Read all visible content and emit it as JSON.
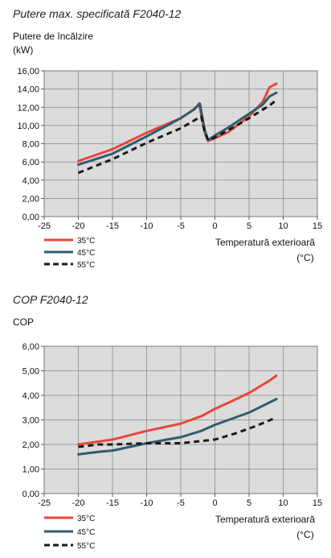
{
  "chart_data": [
    {
      "type": "line",
      "title": "Putere max. specificată F2040-12",
      "ylabel_line1": "Putere de încălzire",
      "ylabel_line2": "(kW)",
      "xlabel_line1": "Temperatură exterioară",
      "xlabel_line2": "(°C)",
      "xlim": [
        -25,
        15
      ],
      "ylim": [
        0,
        16
      ],
      "xticks": [
        "-25",
        "-20",
        "-15",
        "-10",
        "-5",
        "0",
        "5",
        "10",
        "15"
      ],
      "yticks": [
        "0,00",
        "2,00",
        "4,00",
        "6,00",
        "8,00",
        "10,00",
        "12,00",
        "14,00",
        "16,00"
      ],
      "grid": true,
      "legend_position": "bottom-left",
      "series": [
        {
          "name": "35°C",
          "color": "#e8473a",
          "style": "solid",
          "points": [
            [
              -20,
              6.1
            ],
            [
              -15,
              7.4
            ],
            [
              -10,
              9.2
            ],
            [
              -5,
              10.8
            ],
            [
              -3,
              11.8
            ],
            [
              -2.3,
              12.4
            ],
            [
              -1.5,
              9.2
            ],
            [
              -1,
              8.3
            ],
            [
              0,
              8.6
            ],
            [
              2,
              9.3
            ],
            [
              5,
              11.0
            ],
            [
              7,
              12.6
            ],
            [
              8,
              14.2
            ],
            [
              9,
              14.6
            ]
          ]
        },
        {
          "name": "45°C",
          "color": "#2f5d6e",
          "style": "solid",
          "points": [
            [
              -20,
              5.7
            ],
            [
              -15,
              6.9
            ],
            [
              -10,
              8.8
            ],
            [
              -5,
              10.8
            ],
            [
              -3,
              11.8
            ],
            [
              -2.2,
              12.4
            ],
            [
              -1.5,
              9.5
            ],
            [
              -1,
              8.4
            ],
            [
              0,
              8.9
            ],
            [
              2,
              9.8
            ],
            [
              5,
              11.3
            ],
            [
              7,
              12.3
            ],
            [
              8,
              13.2
            ],
            [
              9,
              13.6
            ]
          ]
        },
        {
          "name": "55°C",
          "color": "#1a1a1a",
          "style": "dashed",
          "points": [
            [
              -20,
              4.8
            ],
            [
              -15,
              6.3
            ],
            [
              -10,
              8.1
            ],
            [
              -5,
              9.7
            ],
            [
              -2,
              11.0
            ],
            [
              -1.5,
              9.3
            ],
            [
              -1,
              8.4
            ],
            [
              0,
              8.7
            ],
            [
              2,
              9.5
            ],
            [
              5,
              10.8
            ],
            [
              8,
              12.2
            ],
            [
              9,
              12.8
            ]
          ]
        }
      ]
    },
    {
      "type": "line",
      "title": "COP F2040-12",
      "ylabel_line1": "COP",
      "xlabel_line1": "Temperatură exterioară",
      "xlabel_line2": "(°C)",
      "xlim": [
        -25,
        15
      ],
      "ylim": [
        0,
        6
      ],
      "xticks": [
        "-25",
        "-20",
        "-15",
        "-10",
        "-5",
        "0",
        "5",
        "10",
        "15"
      ],
      "yticks": [
        "0,00",
        "1,00",
        "2,00",
        "3,00",
        "4,00",
        "5,00",
        "6,00"
      ],
      "grid": true,
      "legend_position": "bottom-left",
      "series": [
        {
          "name": "35°C",
          "color": "#e8473a",
          "style": "solid",
          "points": [
            [
              -20,
              2.0
            ],
            [
              -15,
              2.2
            ],
            [
              -10,
              2.55
            ],
            [
              -5,
              2.85
            ],
            [
              -2,
              3.15
            ],
            [
              0,
              3.45
            ],
            [
              2,
              3.7
            ],
            [
              5,
              4.1
            ],
            [
              8,
              4.6
            ],
            [
              9,
              4.8
            ]
          ]
        },
        {
          "name": "45°C",
          "color": "#2f5d6e",
          "style": "solid",
          "points": [
            [
              -20,
              1.6
            ],
            [
              -17,
              1.7
            ],
            [
              -15,
              1.75
            ],
            [
              -10,
              2.05
            ],
            [
              -5,
              2.3
            ],
            [
              -2,
              2.55
            ],
            [
              0,
              2.8
            ],
            [
              5,
              3.3
            ],
            [
              9,
              3.85
            ]
          ]
        },
        {
          "name": "55°C",
          "color": "#1a1a1a",
          "style": "dashed",
          "points": [
            [
              -20,
              1.9
            ],
            [
              -17,
              2.0
            ],
            [
              -15,
              2.0
            ],
            [
              -10,
              2.05
            ],
            [
              -5,
              2.05
            ],
            [
              0,
              2.2
            ],
            [
              3,
              2.45
            ],
            [
              6,
              2.75
            ],
            [
              9,
              3.1
            ]
          ]
        }
      ]
    }
  ]
}
